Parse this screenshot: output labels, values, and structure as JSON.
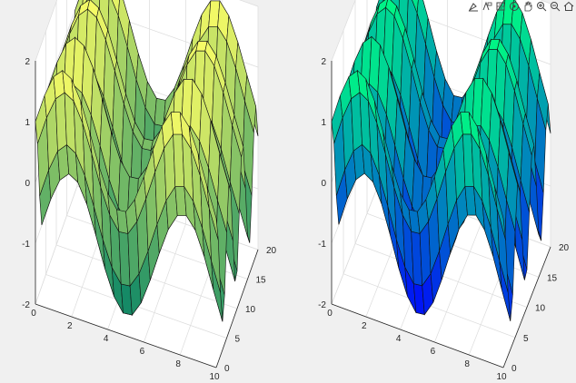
{
  "toolbar": {
    "buttons": [
      {
        "name": "brush-icon"
      },
      {
        "name": "datatip-icon"
      },
      {
        "name": "rotate-icon"
      },
      {
        "name": "pan-icon"
      },
      {
        "name": "zoom-in-icon"
      },
      {
        "name": "zoom-out-icon"
      },
      {
        "name": "home-icon"
      }
    ]
  },
  "chart_data": [
    {
      "type": "surface",
      "colormap": "summer",
      "function": "z = sin(x) + cos(y)",
      "x_range": [
        0,
        10
      ],
      "y_range": [
        0,
        20
      ],
      "z_range": [
        -2,
        2
      ],
      "x_ticks": [
        "0",
        "2",
        "4",
        "6",
        "8",
        "10"
      ],
      "y_ticks": [
        "0",
        "5",
        "10",
        "15",
        "20"
      ],
      "z_ticks": [
        "-2",
        "-1",
        "0",
        "1",
        "2"
      ],
      "grid": true,
      "colors": {
        "low": "#008066",
        "high": "#ffff66"
      }
    },
    {
      "type": "surface",
      "colormap": "winter",
      "function": "z = sin(x) + cos(y)",
      "x_range": [
        0,
        10
      ],
      "y_range": [
        0,
        20
      ],
      "z_range": [
        -2,
        2
      ],
      "x_ticks": [
        "0",
        "2",
        "4",
        "6",
        "8",
        "10"
      ],
      "y_ticks": [
        "0",
        "5",
        "10",
        "15",
        "20"
      ],
      "z_ticks": [
        "-2",
        "-1",
        "0",
        "1",
        "2"
      ],
      "grid": true,
      "colors": {
        "low": "#0000ff",
        "high": "#00ff80"
      }
    }
  ]
}
